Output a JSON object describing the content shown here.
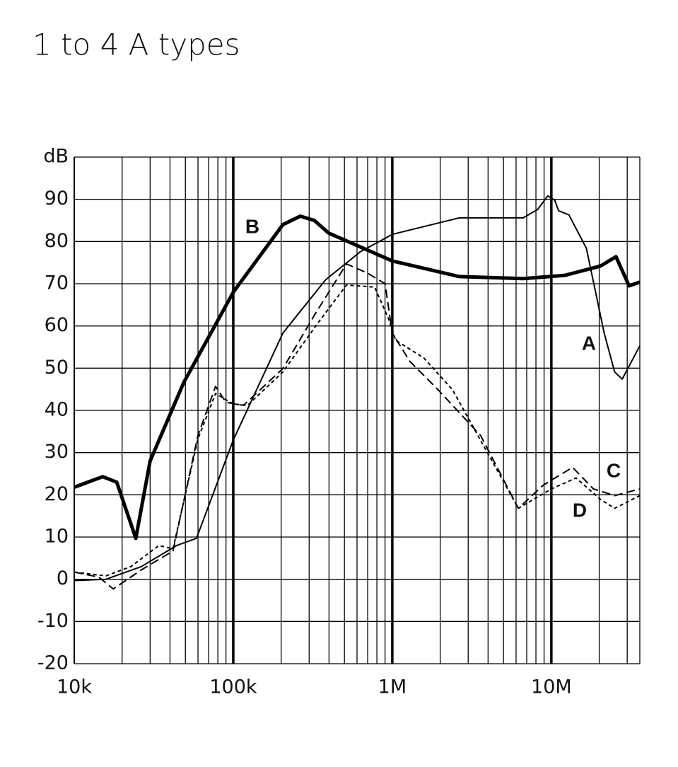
{
  "chart_data": {
    "type": "line",
    "title": "1 to 4 A types",
    "y_label": "dB",
    "x_scale": "log",
    "grid": true,
    "xlim": [
      10000,
      36000000
    ],
    "ylim": [
      -20,
      100
    ],
    "xticks": [
      {
        "value": 10000,
        "label": "10k"
      },
      {
        "value": 100000,
        "label": "100k"
      },
      {
        "value": 1000000,
        "label": "1M"
      },
      {
        "value": 10000000,
        "label": "10M"
      }
    ],
    "yticks": [
      -20,
      -10,
      0,
      10,
      20,
      30,
      40,
      50,
      60,
      70,
      80,
      90
    ],
    "series": [
      {
        "name": "A",
        "color": "#000000",
        "width": 2,
        "dash": "none",
        "x": [
          10000,
          15800,
          26400,
          44100,
          58700,
          100000,
          205000,
          380000,
          630000,
          1000000,
          2640000,
          6660000,
          8200000,
          9500000,
          10500000,
          11100000,
          12900000,
          16600000,
          21500000,
          25000000,
          27900000,
          36000000
        ],
        "values": [
          -0.3,
          0,
          3,
          8,
          9.7,
          33,
          58.3,
          70.9,
          77.6,
          81.7,
          85.6,
          85.6,
          87.6,
          90.8,
          89.8,
          87.3,
          86.3,
          78.4,
          58.3,
          49.1,
          47.4,
          55.3
        ]
      },
      {
        "name": "B",
        "color": "#000000",
        "width": 5,
        "dash": "none",
        "x": [
          10000,
          15100,
          18500,
          24400,
          30000,
          48800,
          100000,
          205000,
          264000,
          323000,
          398000,
          1000000,
          2640000,
          6660000,
          12200000,
          20400000,
          25500000,
          30800000,
          36000000
        ],
        "values": [
          21.8,
          24.3,
          23,
          9.7,
          28,
          46.6,
          68,
          84,
          86,
          85,
          82,
          75.4,
          71.7,
          71.2,
          72,
          74.2,
          76.4,
          69.5,
          70.4
        ]
      },
      {
        "name": "C",
        "color": "#000000",
        "width": 2,
        "dash": "12 6",
        "x": [
          10000,
          14300,
          17600,
          26400,
          41800,
          59900,
          77400,
          90000,
          116000,
          205000,
          323000,
          515000,
          700000,
          900000,
          1000000,
          1290000,
          1940000,
          3600000,
          6200000,
          8900000,
          13600000,
          18400000,
          25000000,
          36000000
        ],
        "values": [
          1.7,
          0.5,
          -2.3,
          2.2,
          6.7,
          34,
          45.7,
          41.9,
          41.2,
          49.9,
          62.5,
          74.7,
          72.5,
          70,
          58.3,
          51.6,
          44.9,
          34,
          16.8,
          22.3,
          26.5,
          21.4,
          19.8,
          21.4
        ]
      },
      {
        "name": "D",
        "color": "#000000",
        "width": 2,
        "dash": "5 4",
        "x": [
          10000,
          15800,
          22700,
          34100,
          41800,
          59900,
          77400,
          100000,
          123000,
          205000,
          342000,
          515000,
          774000,
          949000,
          1050000,
          1580000,
          2390000,
          3990000,
          6200000,
          10000000,
          14300000,
          20400000,
          25000000,
          36000000
        ],
        "values": [
          1.7,
          0.8,
          3,
          8,
          7.2,
          33.2,
          44,
          41.5,
          41.2,
          49.1,
          60.8,
          69.7,
          69.2,
          61.6,
          56.6,
          52.4,
          44.9,
          29.8,
          16.8,
          21.4,
          24,
          18.9,
          16.8,
          19.8
        ]
      }
    ]
  }
}
